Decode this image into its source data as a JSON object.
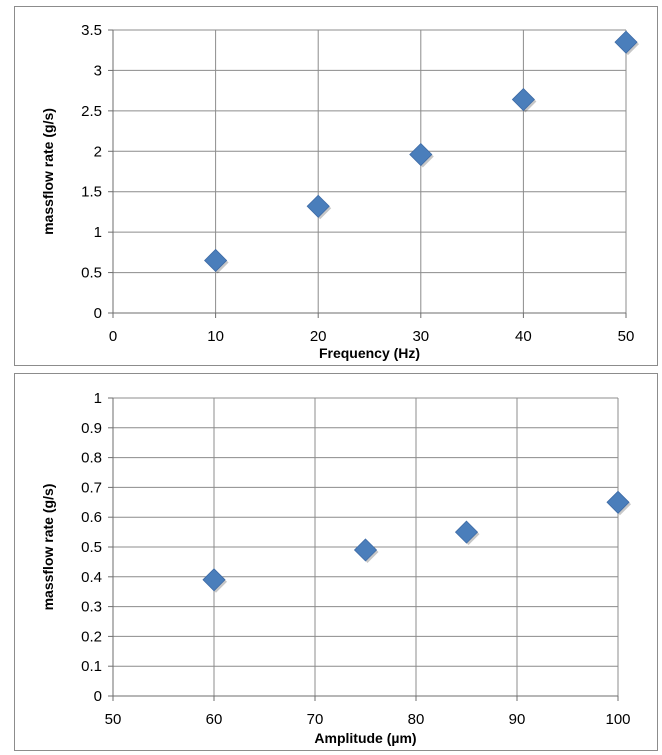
{
  "chart_data": [
    {
      "type": "scatter",
      "xlabel": "Frequency (Hz)",
      "ylabel": "massflow rate (g/s)",
      "xlim": [
        0,
        50
      ],
      "ylim": [
        0,
        3.5
      ],
      "xticks": [
        "0",
        "10",
        "20",
        "30",
        "40",
        "50"
      ],
      "yticks": [
        "0",
        "0.5",
        "1",
        "1.5",
        "2",
        "2.5",
        "3",
        "3.5"
      ],
      "grid": true,
      "marker": "diamond",
      "marker_color": "#4a7ebb",
      "series": [
        {
          "x": [
            10,
            20,
            30,
            40,
            50
          ],
          "y": [
            0.65,
            1.32,
            1.96,
            2.64,
            3.35
          ]
        }
      ]
    },
    {
      "type": "scatter",
      "xlabel": "Amplitude (µm)",
      "ylabel": "massflow rate (g/s)",
      "xlim": [
        50,
        100
      ],
      "ylim": [
        0,
        1
      ],
      "xticks": [
        "50",
        "60",
        "70",
        "80",
        "90",
        "100"
      ],
      "yticks": [
        "0",
        "0.1",
        "0.2",
        "0.3",
        "0.4",
        "0.5",
        "0.6",
        "0.7",
        "0.8",
        "0.9",
        "1"
      ],
      "grid": true,
      "marker": "diamond",
      "marker_color": "#4a7ebb",
      "series": [
        {
          "x": [
            60,
            75,
            85,
            100
          ],
          "y": [
            0.39,
            0.49,
            0.55,
            0.65
          ]
        }
      ]
    }
  ]
}
